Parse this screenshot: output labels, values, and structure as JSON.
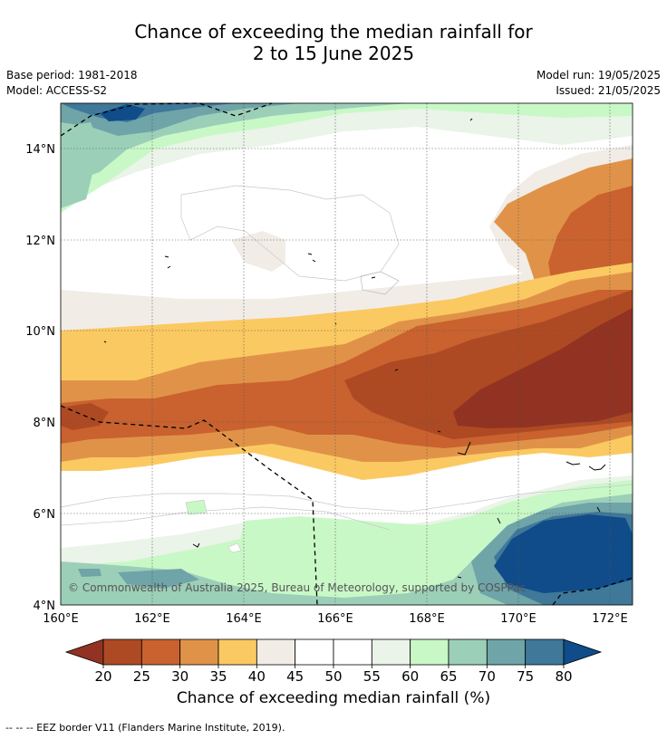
{
  "title_line1": "Chance of exceeding the median rainfall for",
  "title_line2": "2 to 15 June 2025",
  "base_period": "Base period: 1981-2018",
  "model": "Model: ACCESS-S2",
  "model_run": "Model run: 19/05/2025",
  "issued": "Issued: 21/05/2025",
  "copyright": "© Commonwealth of Australia 2025, Bureau of Meteorology, supported by COSPPac",
  "lon_ticks": [
    "160°E",
    "162°E",
    "164°E",
    "166°E",
    "168°E",
    "170°E",
    "172°E"
  ],
  "lat_ticks": [
    "14°N",
    "12°N",
    "10°N",
    "8°N",
    "6°N",
    "4°N"
  ],
  "colorbar": {
    "ticks": [
      "20",
      "25",
      "30",
      "35",
      "40",
      "45",
      "50",
      "55",
      "60",
      "65",
      "70",
      "75",
      "80"
    ],
    "colors": [
      "#ae4a23",
      "#c9622f",
      "#e09348",
      "#fbc962",
      "#f1ece6",
      "#ffffff",
      "#ffffff",
      "#eaf4e8",
      "#c9f8c7",
      "#9ccfb8",
      "#6fa4a8",
      "#3f7899"
    ],
    "under_color": "#923222",
    "over_color": "#0f4c89",
    "label": "Chance of exceeding median rainfall (%)"
  },
  "footnote": "--  --  -- EEZ border V11 (Flanders Marine Institute, 2019)."
}
